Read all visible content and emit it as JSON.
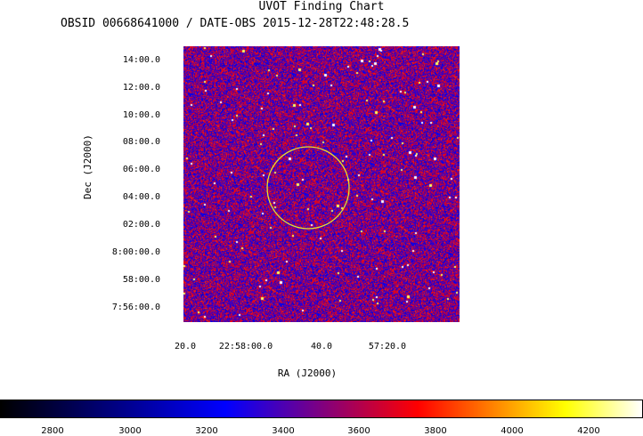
{
  "chart": {
    "title": "UVOT Finding Chart",
    "subtitle": "OBSID 00668641000 / DATE-OBS 2015-12-28T22:48:28.5",
    "xlabel": "RA (J2000)",
    "ylabel": "Dec (J2000)",
    "yticks": [
      "14:00.0",
      "12:00.0",
      "10:00.0",
      "08:00.0",
      "06:00.0",
      "04:00.0",
      "02:00.0",
      "8:00:00.0",
      "58:00.0",
      "7:56:00.0"
    ],
    "xticks": [
      "20.0",
      "22:58:00.0",
      "40.0",
      "57:20.0"
    ],
    "colorbar_ticks": [
      "2800",
      "3000",
      "3200",
      "3400",
      "3600",
      "3800",
      "4000",
      "4200"
    ],
    "colors": {
      "circle": "#e8e02c",
      "colormap": [
        "#000000",
        "#0000ff",
        "#ff0000",
        "#ffff00",
        "#ffffff"
      ]
    }
  }
}
